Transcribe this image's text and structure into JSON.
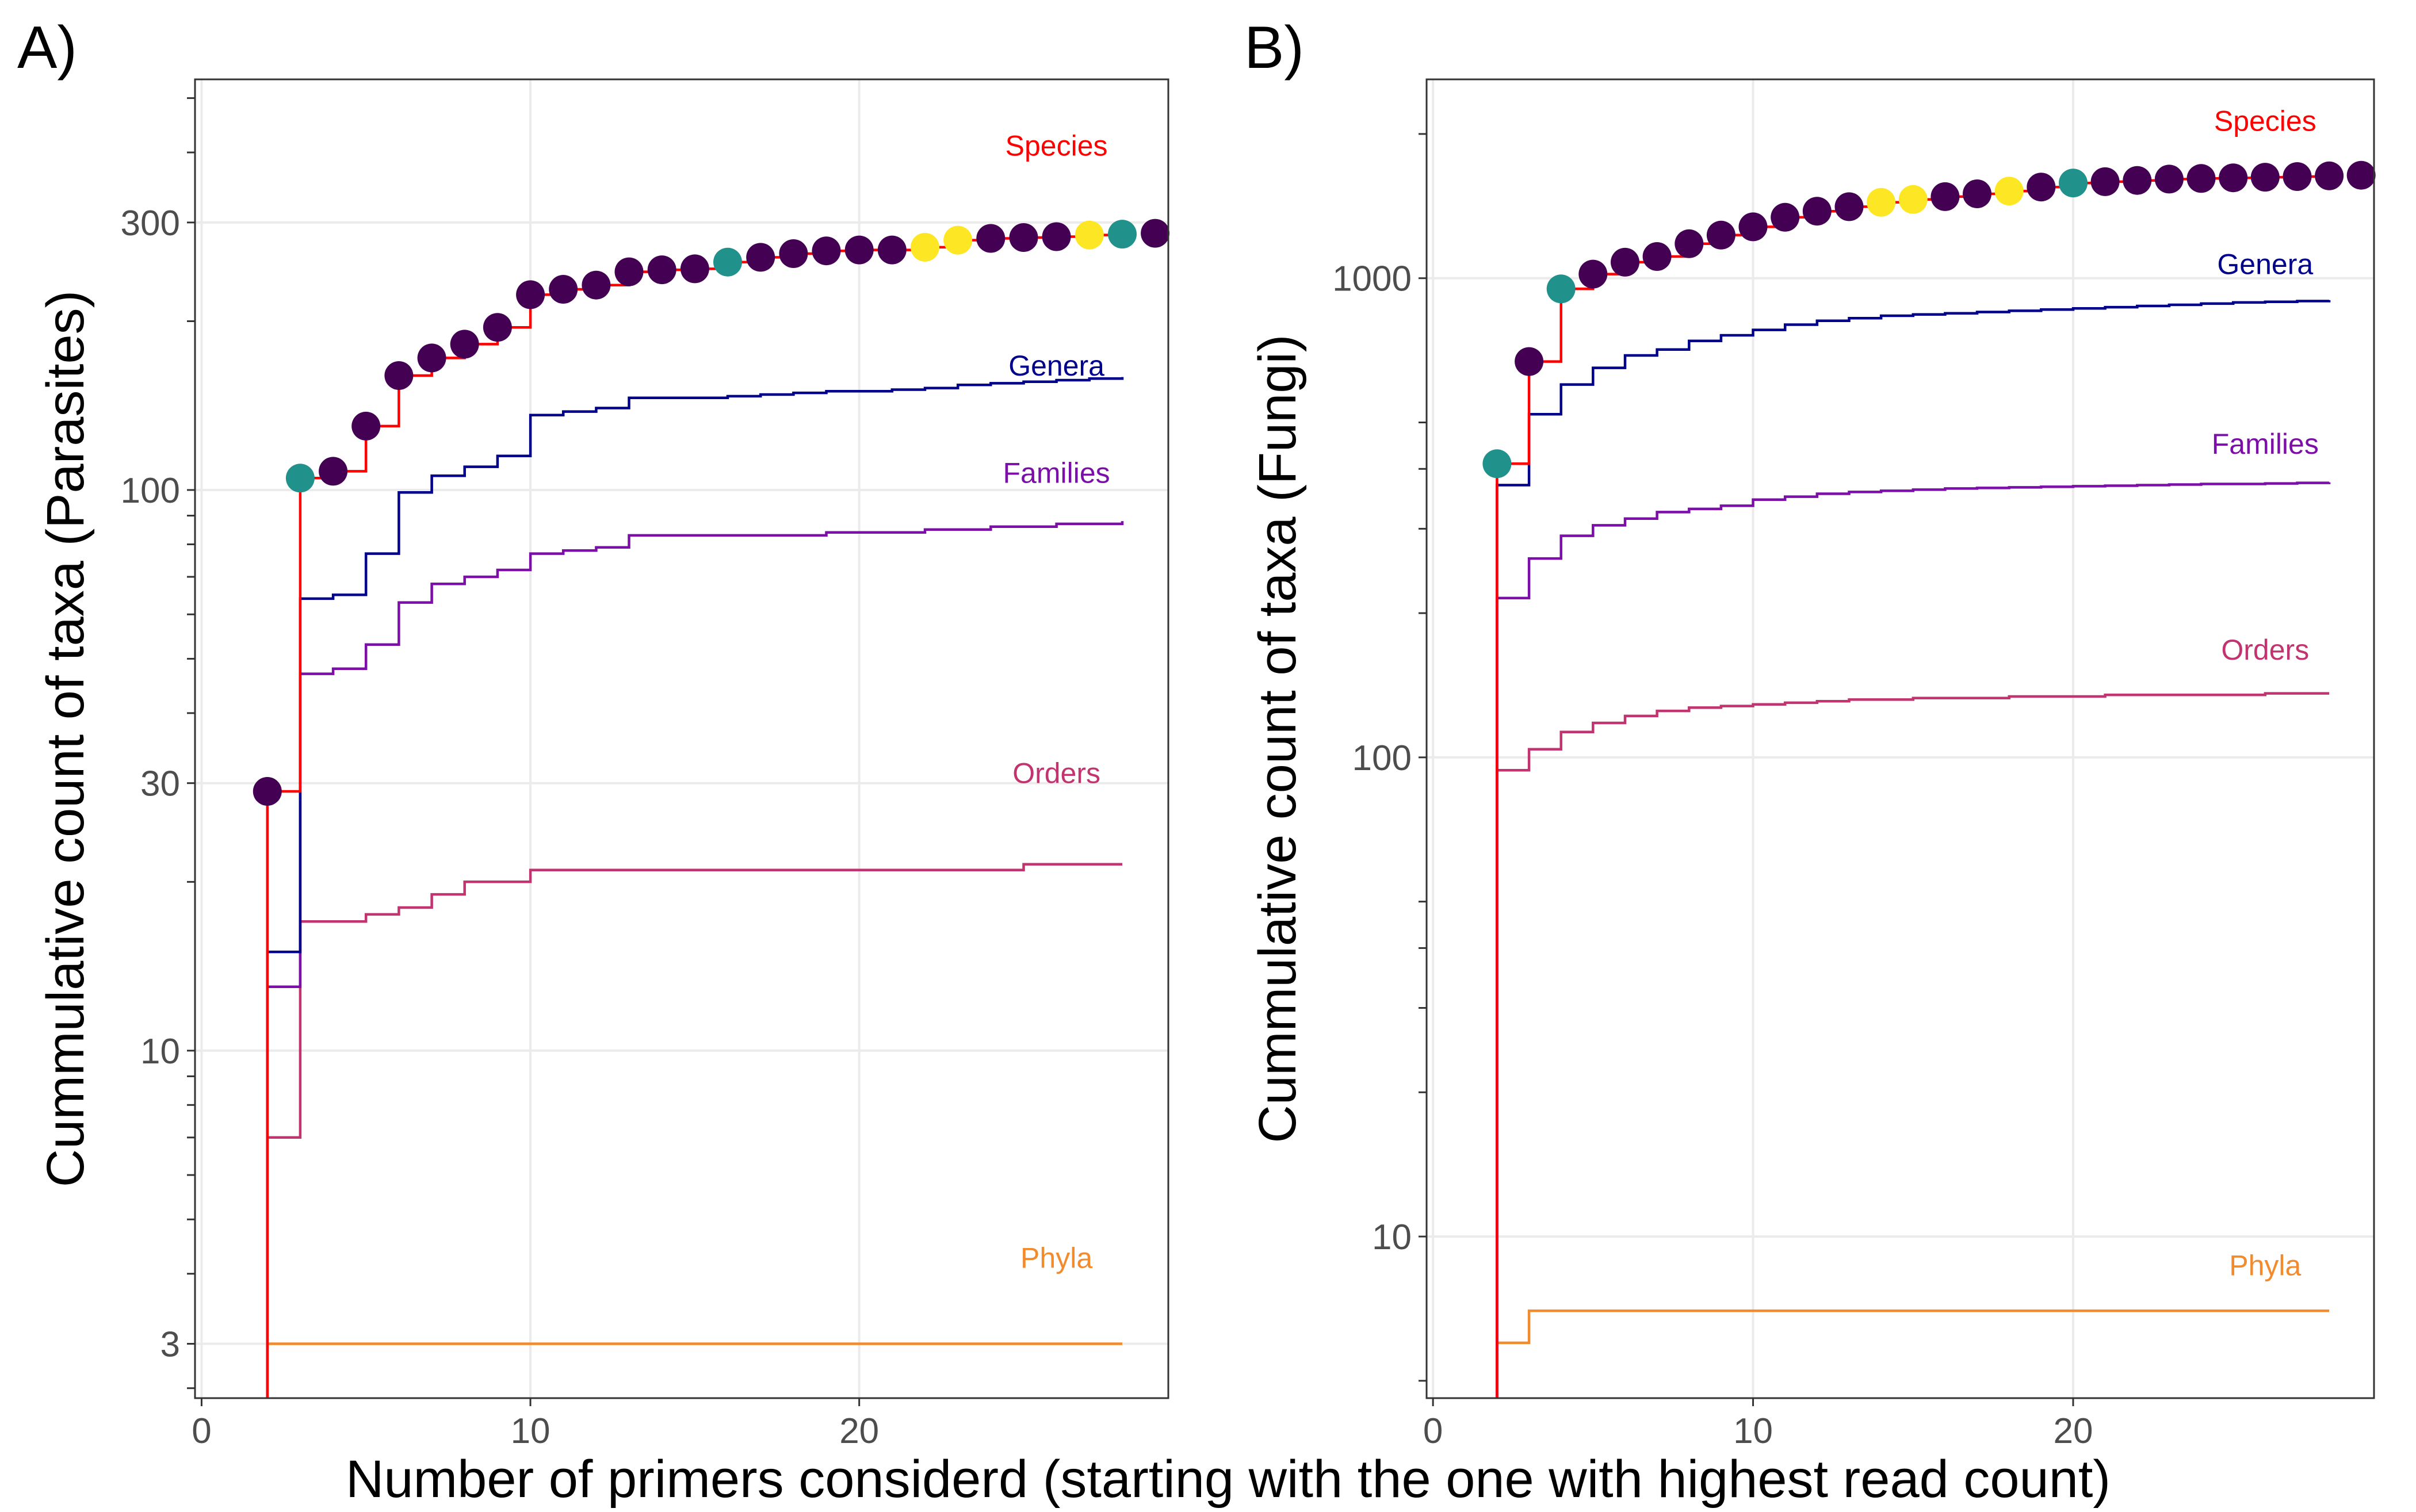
{
  "figure": {
    "xlabel": "Number of primers considerd (starting with the one with highest read count)"
  },
  "chart_data": [
    {
      "type": "line",
      "panel_label": "A)",
      "title": "",
      "xlabel": "Number of primers considerd (starting with the one with highest read count)",
      "ylabel": "Cummulative count of taxa (Parasites)",
      "x_scale": "linear",
      "y_scale": "log",
      "xlim": [
        -0.2,
        29.4
      ],
      "ylim": [
        2.4,
        540
      ],
      "x_ticks": [
        0,
        10,
        20
      ],
      "x_tick_labels": [
        "0",
        "10",
        "20"
      ],
      "y_ticks": [
        3,
        10,
        30,
        100,
        300
      ],
      "y_tick_labels": [
        "3",
        "10",
        "30",
        "100",
        "300"
      ],
      "y_minor_ticks": [
        2.5,
        4,
        5,
        6,
        7,
        8,
        9,
        20,
        40,
        50,
        60,
        70,
        80,
        90,
        200,
        400,
        500
      ],
      "grid": true,
      "x": [
        2,
        3,
        4,
        5,
        6,
        7,
        8,
        9,
        10,
        11,
        12,
        13,
        14,
        15,
        16,
        17,
        18,
        19,
        20,
        21,
        22,
        23,
        24,
        25,
        26,
        27,
        28
      ],
      "series": [
        {
          "name": "Species",
          "color": "#ff0000",
          "values": [
            29,
            105,
            108,
            130,
            160,
            172,
            182,
            195,
            223,
            228,
            232,
            245,
            247,
            248,
            255,
            260,
            264,
            267,
            268,
            268,
            271,
            279,
            281,
            282,
            283,
            285,
            286
          ]
        },
        {
          "name": "Genera",
          "color": "#00008b",
          "values": [
            15,
            64,
            65,
            77,
            99,
            106,
            110,
            115,
            136,
            138,
            140,
            146,
            146,
            146,
            147,
            148,
            149,
            150,
            150,
            151,
            152,
            154,
            155,
            156,
            157,
            158,
            159
          ]
        },
        {
          "name": "Families",
          "color": "#7b0fa7",
          "values": [
            13,
            47,
            48,
            53,
            63,
            68,
            70,
            72,
            77,
            78,
            79,
            83,
            83,
            83,
            83,
            83,
            83,
            84,
            84,
            84,
            85,
            85,
            86,
            86,
            87,
            87,
            88
          ]
        },
        {
          "name": "Orders",
          "color": "#c2346f",
          "values": [
            7,
            17,
            17,
            17.5,
            18,
            19,
            20,
            20,
            21,
            21,
            21,
            21,
            21,
            21,
            21,
            21,
            21,
            21,
            21,
            21,
            21,
            21,
            21,
            21.5,
            21.5,
            21.5,
            21.5
          ]
        },
        {
          "name": "Phyla",
          "color": "#f28a2e",
          "values": [
            3,
            3,
            3,
            3,
            3,
            3,
            3,
            3,
            3,
            3,
            3,
            3,
            3,
            3,
            3,
            3,
            3,
            3,
            3,
            3,
            3,
            3,
            3,
            3,
            3,
            3,
            3
          ]
        }
      ],
      "species_points": [
        {
          "x": 2,
          "y": 29,
          "color": "#440154"
        },
        {
          "x": 3,
          "y": 105,
          "color": "#21918c"
        },
        {
          "x": 4,
          "y": 108,
          "color": "#440154"
        },
        {
          "x": 5,
          "y": 130,
          "color": "#440154"
        },
        {
          "x": 6,
          "y": 160,
          "color": "#440154"
        },
        {
          "x": 7,
          "y": 172,
          "color": "#440154"
        },
        {
          "x": 8,
          "y": 182,
          "color": "#440154"
        },
        {
          "x": 9,
          "y": 195,
          "color": "#440154"
        },
        {
          "x": 10,
          "y": 223,
          "color": "#440154"
        },
        {
          "x": 11,
          "y": 228,
          "color": "#440154"
        },
        {
          "x": 12,
          "y": 232,
          "color": "#440154"
        },
        {
          "x": 13,
          "y": 245,
          "color": "#440154"
        },
        {
          "x": 14,
          "y": 247,
          "color": "#440154"
        },
        {
          "x": 15,
          "y": 248,
          "color": "#440154"
        },
        {
          "x": 16,
          "y": 255,
          "color": "#21918c"
        },
        {
          "x": 17,
          "y": 260,
          "color": "#440154"
        },
        {
          "x": 18,
          "y": 264,
          "color": "#440154"
        },
        {
          "x": 19,
          "y": 267,
          "color": "#440154"
        },
        {
          "x": 20,
          "y": 268,
          "color": "#440154"
        },
        {
          "x": 21,
          "y": 268,
          "color": "#440154"
        },
        {
          "x": 22,
          "y": 271,
          "color": "#fde725"
        },
        {
          "x": 23,
          "y": 279,
          "color": "#fde725"
        },
        {
          "x": 24,
          "y": 281,
          "color": "#440154"
        },
        {
          "x": 25,
          "y": 282,
          "color": "#440154"
        },
        {
          "x": 26,
          "y": 283,
          "color": "#440154"
        },
        {
          "x": 27,
          "y": 285,
          "color": "#fde725"
        },
        {
          "x": 28,
          "y": 286,
          "color": "#21918c"
        },
        {
          "x": 29,
          "y": 287,
          "color": "#440154"
        }
      ],
      "series_labels": [
        {
          "text": "Species",
          "color": "#ff0000",
          "x": 26,
          "y": 395
        },
        {
          "text": "Genera",
          "color": "#00008b",
          "x": 26,
          "y": 160
        },
        {
          "text": "Families",
          "color": "#7b0fa7",
          "x": 26,
          "y": 103
        },
        {
          "text": "Orders",
          "color": "#c2346f",
          "x": 26,
          "y": 30
        },
        {
          "text": "Phyla",
          "color": "#f28a2e",
          "x": 26,
          "y": 4.1
        }
      ]
    },
    {
      "type": "line",
      "panel_label": "B)",
      "title": "",
      "xlabel": "Number of primers considerd (starting with the one with highest read count)",
      "ylabel": "Cummulative count of taxa (Fungi)",
      "x_scale": "linear",
      "y_scale": "log",
      "xlim": [
        -0.2,
        29.4
      ],
      "ylim": [
        4.6,
        2600
      ],
      "x_ticks": [
        0,
        10,
        20
      ],
      "x_tick_labels": [
        "0",
        "10",
        "20"
      ],
      "y_ticks": [
        10,
        100,
        1000
      ],
      "y_tick_labels": [
        "10",
        "100",
        "1000"
      ],
      "y_minor_ticks": [
        5,
        20,
        30,
        40,
        50,
        200,
        300,
        400,
        500,
        2000
      ],
      "grid": true,
      "x": [
        2,
        3,
        4,
        5,
        6,
        7,
        8,
        9,
        10,
        11,
        12,
        13,
        14,
        15,
        16,
        17,
        18,
        19,
        20,
        21,
        22,
        23,
        24,
        25,
        26,
        27,
        28
      ],
      "series": [
        {
          "name": "Species",
          "color": "#ff0000",
          "values": [
            410,
            670,
            950,
            1020,
            1080,
            1110,
            1180,
            1230,
            1280,
            1340,
            1380,
            1410,
            1440,
            1460,
            1480,
            1500,
            1520,
            1550,
            1580,
            1590,
            1600,
            1610,
            1615,
            1620,
            1625,
            1630,
            1635
          ]
        },
        {
          "name": "Genera",
          "color": "#00008b",
          "values": [
            370,
            520,
            600,
            650,
            690,
            710,
            740,
            760,
            780,
            800,
            815,
            825,
            835,
            840,
            845,
            850,
            855,
            860,
            865,
            870,
            875,
            880,
            885,
            890,
            893,
            896,
            900
          ]
        },
        {
          "name": "Families",
          "color": "#7b0fa7",
          "values": [
            215,
            260,
            290,
            305,
            315,
            325,
            330,
            335,
            345,
            350,
            355,
            358,
            360,
            362,
            364,
            365,
            366,
            367,
            368,
            369,
            370,
            371,
            372,
            372,
            373,
            374,
            375
          ]
        },
        {
          "name": "Orders",
          "color": "#c2346f",
          "values": [
            94,
            104,
            113,
            118,
            122,
            125,
            127,
            128,
            129,
            130,
            131,
            132,
            132,
            133,
            133,
            133,
            134,
            134,
            134,
            135,
            135,
            135,
            135,
            135,
            136,
            136,
            136
          ]
        },
        {
          "name": "Phyla",
          "color": "#f28a2e",
          "values": [
            6,
            7,
            7,
            7,
            7,
            7,
            7,
            7,
            7,
            7,
            7,
            7,
            7,
            7,
            7,
            7,
            7,
            7,
            7,
            7,
            7,
            7,
            7,
            7,
            7,
            7,
            7
          ]
        }
      ],
      "species_points": [
        {
          "x": 2,
          "y": 410,
          "color": "#21918c"
        },
        {
          "x": 3,
          "y": 670,
          "color": "#440154"
        },
        {
          "x": 4,
          "y": 950,
          "color": "#21918c"
        },
        {
          "x": 5,
          "y": 1020,
          "color": "#440154"
        },
        {
          "x": 6,
          "y": 1080,
          "color": "#440154"
        },
        {
          "x": 7,
          "y": 1110,
          "color": "#440154"
        },
        {
          "x": 8,
          "y": 1180,
          "color": "#440154"
        },
        {
          "x": 9,
          "y": 1230,
          "color": "#440154"
        },
        {
          "x": 10,
          "y": 1280,
          "color": "#440154"
        },
        {
          "x": 11,
          "y": 1340,
          "color": "#440154"
        },
        {
          "x": 12,
          "y": 1380,
          "color": "#440154"
        },
        {
          "x": 13,
          "y": 1410,
          "color": "#440154"
        },
        {
          "x": 14,
          "y": 1440,
          "color": "#fde725"
        },
        {
          "x": 15,
          "y": 1460,
          "color": "#fde725"
        },
        {
          "x": 16,
          "y": 1480,
          "color": "#440154"
        },
        {
          "x": 17,
          "y": 1500,
          "color": "#440154"
        },
        {
          "x": 18,
          "y": 1520,
          "color": "#fde725"
        },
        {
          "x": 19,
          "y": 1550,
          "color": "#440154"
        },
        {
          "x": 20,
          "y": 1580,
          "color": "#21918c"
        },
        {
          "x": 21,
          "y": 1590,
          "color": "#440154"
        },
        {
          "x": 22,
          "y": 1600,
          "color": "#440154"
        },
        {
          "x": 23,
          "y": 1610,
          "color": "#440154"
        },
        {
          "x": 24,
          "y": 1615,
          "color": "#440154"
        },
        {
          "x": 25,
          "y": 1620,
          "color": "#440154"
        },
        {
          "x": 26,
          "y": 1625,
          "color": "#440154"
        },
        {
          "x": 27,
          "y": 1630,
          "color": "#440154"
        },
        {
          "x": 28,
          "y": 1635,
          "color": "#440154"
        },
        {
          "x": 29,
          "y": 1640,
          "color": "#440154"
        }
      ],
      "series_labels": [
        {
          "text": "Species",
          "color": "#ff0000",
          "x": 26,
          "y": 2030
        },
        {
          "text": "Genera",
          "color": "#00008b",
          "x": 26,
          "y": 1020
        },
        {
          "text": "Families",
          "color": "#7b0fa7",
          "x": 26,
          "y": 430
        },
        {
          "text": "Orders",
          "color": "#c2346f",
          "x": 26,
          "y": 160
        },
        {
          "text": "Phyla",
          "color": "#f28a2e",
          "x": 26,
          "y": 8.3
        }
      ]
    }
  ]
}
